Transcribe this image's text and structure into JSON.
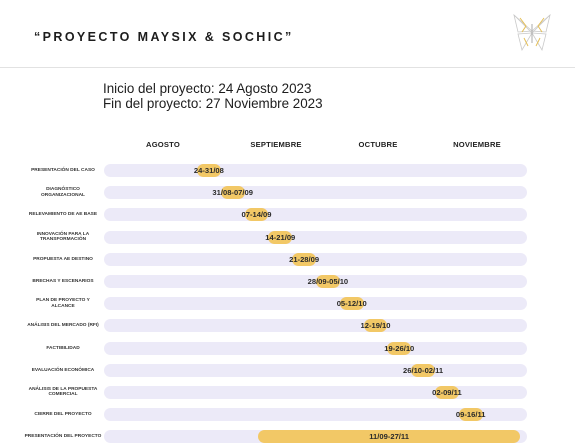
{
  "header": {
    "title": "“PROYECTO MAYSIX & SOCHIC”",
    "logo_icon": "butterfly-logo-icon"
  },
  "project": {
    "start": "Inicio del proyecto: 24 Agosto 2023",
    "end": "Fin del proyecto: 27 Noviembre 2023"
  },
  "colors": {
    "track": "#eceaf8",
    "bar": "#f2c866",
    "text": "#222222"
  },
  "chart_data": {
    "type": "bar",
    "orientation": "horizontal-gantt",
    "title": "",
    "months": [
      "AGOSTO",
      "SEPTIEMBRE",
      "OCTUBRE",
      "NOVIEMBRE"
    ],
    "x_range": [
      "2023-08-01",
      "2023-11-30"
    ],
    "tasks": [
      {
        "name": "PRESENTACIÓN DEL CASO",
        "start": "2023-08-24",
        "end": "2023-08-31",
        "label": "24-31/08"
      },
      {
        "name": "DIAGNÓSTICO ORGANIZACIONAL",
        "start": "2023-08-31",
        "end": "2023-09-07",
        "label": "31/08-07/09"
      },
      {
        "name": "RELEVAMIENTO DE AE BASE",
        "start": "2023-09-07",
        "end": "2023-09-14",
        "label": "07-14/09"
      },
      {
        "name": "INNOVACIÓN PARA LA TRANSFORMACIÓN",
        "start": "2023-09-14",
        "end": "2023-09-21",
        "label": "14-21/09"
      },
      {
        "name": "PROPUESTA AE DESTINO",
        "start": "2023-09-21",
        "end": "2023-09-28",
        "label": "21-28/09"
      },
      {
        "name": "BRECHAS Y ESCENARIOS",
        "start": "2023-09-28",
        "end": "2023-10-05",
        "label": "28/09-05/10"
      },
      {
        "name": "PLAN DE PROYECTO Y ALCANCE",
        "start": "2023-10-05",
        "end": "2023-10-12",
        "label": "05-12/10"
      },
      {
        "name": "ANÁLISIS DEL MERCADO (RFI)",
        "start": "2023-10-12",
        "end": "2023-10-19",
        "label": "12-19/10"
      },
      {
        "name": "FACTIBILIDAD",
        "start": "2023-10-19",
        "end": "2023-10-26",
        "label": "19-26/10"
      },
      {
        "name": "EVALUACIÓN ECONÓMICA",
        "start": "2023-10-26",
        "end": "2023-11-02",
        "label": "26/10-02/11"
      },
      {
        "name": "ANÁLISIS DE LA PROPUESTA COMERCIAL",
        "start": "2023-11-02",
        "end": "2023-11-09",
        "label": "02-09/11"
      },
      {
        "name": "CIERRE DEL PROYECTO",
        "start": "2023-11-09",
        "end": "2023-11-16",
        "label": "09-16/11"
      },
      {
        "name": "PRESENTACIÓN DEL PROYECTO",
        "start": "2023-09-11",
        "end": "2023-11-27",
        "label": "11/09-27/11"
      }
    ]
  }
}
